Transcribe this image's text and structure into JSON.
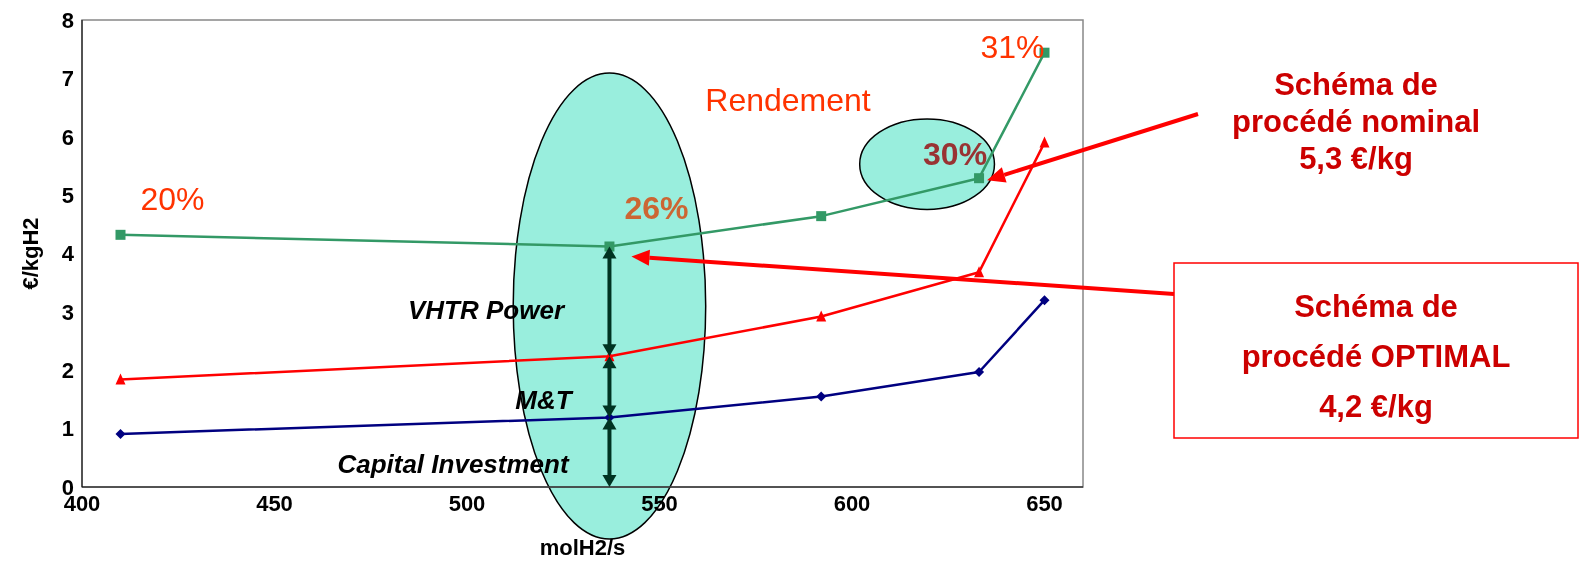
{
  "chart_data": {
    "type": "line",
    "xlabel": "molH2/s",
    "ylabel": "€/kgH2",
    "xlim": [
      400,
      660
    ],
    "xticks": [
      400,
      450,
      500,
      550,
      600,
      650
    ],
    "ylim": [
      0,
      8
    ],
    "yticks": [
      0,
      1,
      2,
      3,
      4,
      5,
      6,
      7,
      8
    ],
    "line_style": "solid",
    "x": [
      410,
      537,
      592,
      633,
      650
    ],
    "series": [
      {
        "color": "#339966",
        "marker": "square",
        "values": [
          4.32,
          4.12,
          4.64,
          5.29,
          7.44
        ]
      },
      {
        "color": "#ff0000",
        "marker": "triangle",
        "values": [
          1.84,
          2.24,
          2.92,
          3.68,
          5.9
        ]
      },
      {
        "color": "#000080",
        "marker": "diamond",
        "values": [
          0.91,
          1.19,
          1.55,
          1.97,
          3.2
        ]
      }
    ],
    "annotations": [
      {
        "text": "20%",
        "x": 410,
        "y": 4.32
      },
      {
        "text": "26%",
        "x": 537,
        "y": 4.12
      },
      {
        "text": "30%",
        "x": 633,
        "y": 5.29
      },
      {
        "text": "31%",
        "x": 650,
        "y": 7.44
      },
      "Rendement",
      "VHTR Power",
      {
        "text": "M&T",
        "x": 537,
        "y": 1.19
      },
      "Capital Investment",
      "Schéma de\nprocédé nominal\n5,3 €/kg",
      "Schéma de\nprocédé OPTIMAL\n4,2 €/kg"
    ]
  }
}
